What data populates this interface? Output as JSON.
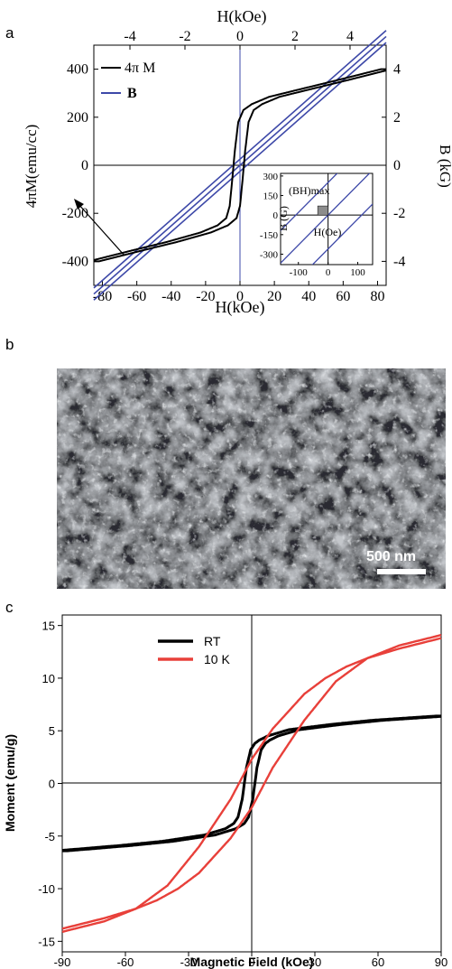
{
  "panels": {
    "a_label": "a",
    "b_label": "b",
    "c_label": "c"
  },
  "sem": {
    "scale_label": "500 nm"
  },
  "chart_data": [
    {
      "id": "panel-a-main",
      "type": "line",
      "xlabel": "H(kOe)",
      "xlabel_top": "H(kOe)",
      "ylabel": "4πM(emu/cc)",
      "ylabel_right": "B (kG)",
      "xlim": [
        -85,
        85
      ],
      "ylim": [
        -500,
        500
      ],
      "top_xlim": [
        -5.3125,
        5.3125
      ],
      "right_ylim": [
        -5,
        5
      ],
      "x_ticks": [
        -80,
        -60,
        -40,
        -20,
        0,
        20,
        40,
        60,
        80
      ],
      "y_ticks": [
        -400,
        -200,
        0,
        200,
        400
      ],
      "top_ticks": [
        -4,
        -2,
        0,
        2,
        4
      ],
      "right_ticks": [
        -4,
        -2,
        0,
        2,
        4
      ],
      "legend": [
        "4π M",
        "B"
      ],
      "legend_position": "top-left",
      "colors": {
        "four_pi_m": "#000000",
        "b": "#3d48a8"
      },
      "series": [
        {
          "name": "4π M",
          "x": [
            -85,
            -60,
            -40,
            -20,
            -10,
            -5,
            -3,
            -1.5,
            0,
            2,
            5,
            10,
            20,
            40,
            60,
            85
          ],
          "values": [
            -400,
            -355,
            -320,
            -280,
            -250,
            -220,
            -170,
            -60,
            60,
            180,
            230,
            255,
            285,
            320,
            355,
            400
          ],
          "branch_offset_kOe": 3
        },
        {
          "name": "B",
          "x": [
            -85,
            85
          ],
          "values": [
            -536,
            536
          ],
          "branch_offsets": [
            -4,
            0,
            4
          ]
        }
      ],
      "annotation_arrow": "from (-60,-350) to (-80,-190)"
    },
    {
      "id": "panel-a-inset",
      "type": "line",
      "xlabel": "H(Oe)",
      "ylabel": "B (G)",
      "annotation": "(BH)max",
      "xlim": [
        -160,
        150
      ],
      "ylim": [
        -380,
        320
      ],
      "x_ticks": [
        -100,
        0,
        100
      ],
      "y_ticks": [
        -300,
        -150,
        0,
        150,
        300
      ],
      "series_values": {
        "lines_slope": 2.3,
        "lines_offsets": [
          250,
          0,
          -260
        ]
      },
      "shaded_region": {
        "x": [
          -35,
          0
        ],
        "y": [
          0,
          70
        ]
      }
    },
    {
      "id": "panel-c",
      "type": "line",
      "xlabel": "Magnetic Field (kOe)",
      "ylabel": "Moment (emu/g)",
      "xlim": [
        -90,
        90
      ],
      "ylim": [
        -16,
        16
      ],
      "x_ticks": [
        -90,
        -60,
        -30,
        0,
        30,
        60,
        90
      ],
      "y_ticks": [
        -15,
        -10,
        -5,
        0,
        5,
        10,
        15
      ],
      "legend_position": "top-left",
      "series": [
        {
          "name": "RT",
          "color": "#000000",
          "x": [
            -90,
            -60,
            -40,
            -20,
            -10,
            -6,
            -4,
            -2,
            0,
            2,
            4,
            6,
            10,
            20,
            40,
            60,
            90
          ],
          "values": [
            -6.4,
            -5.9,
            -5.5,
            -4.9,
            -4.3,
            -3.8,
            -3.2,
            -1.5,
            1.5,
            3.2,
            3.8,
            4.1,
            4.5,
            5.1,
            5.6,
            6.0,
            6.4
          ],
          "branch_offset_kOe": 2.5
        },
        {
          "name": "10 K",
          "color": "#e8403a",
          "x": [
            -90,
            -70,
            -55,
            -45,
            -35,
            -25,
            -10,
            0,
            10,
            25,
            40,
            55,
            70,
            90
          ],
          "values": [
            -13.8,
            -12.8,
            -11.9,
            -11.1,
            -10.0,
            -8.5,
            -5.2,
            -2.3,
            1.5,
            6.0,
            9.7,
            11.9,
            13.1,
            14.1
          ],
          "branch_offset_kOe": -46
        }
      ]
    }
  ]
}
